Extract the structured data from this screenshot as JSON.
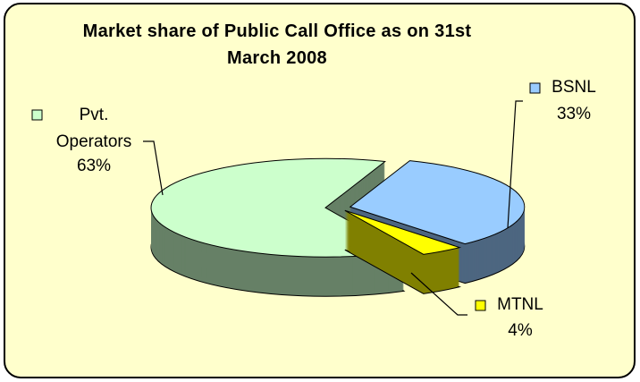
{
  "chart_data": {
    "type": "pie",
    "title": "Market share of Public Call Office as on 31st March 2008",
    "categories": [
      "BSNL",
      "MTNL",
      "Pvt. Operators"
    ],
    "values": [
      33,
      4,
      63
    ],
    "value_labels": [
      "33%",
      "4%",
      "63%"
    ],
    "colors": [
      "#99ccff",
      "#ffff00",
      "#ccffcc"
    ]
  }
}
